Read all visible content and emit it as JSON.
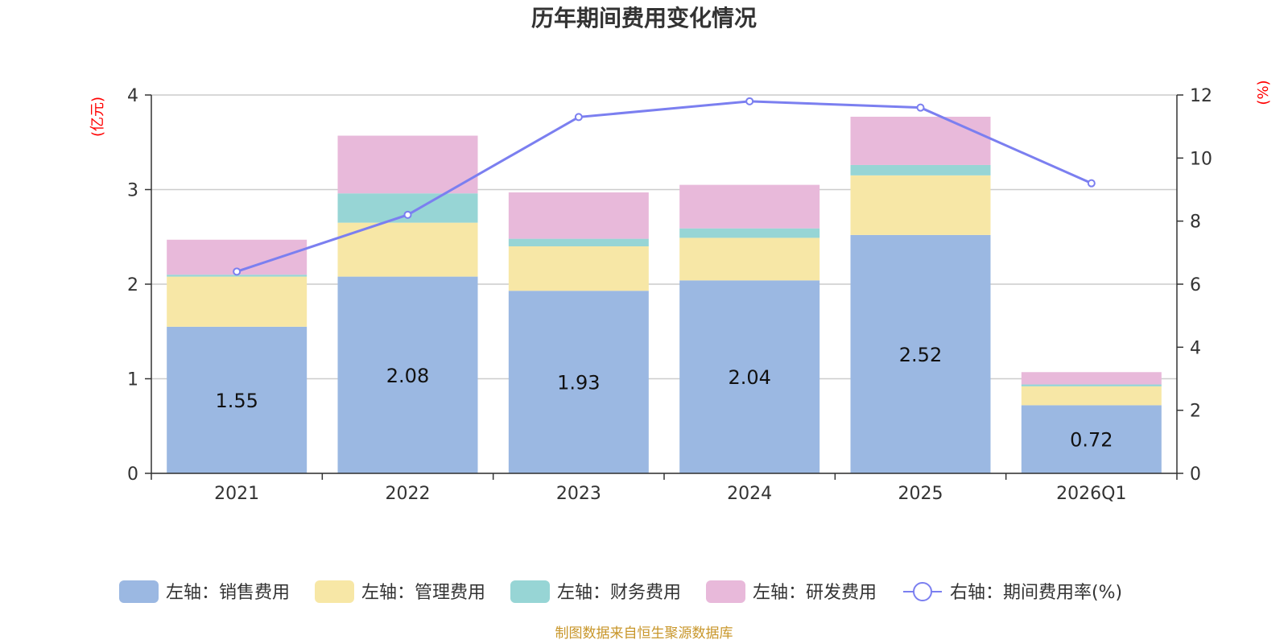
{
  "chart_data": {
    "type": "bar",
    "stacked": true,
    "title": "历年期间费用变化情况",
    "categories": [
      "2021",
      "2022",
      "2023",
      "2024",
      "2025",
      "2026Q1"
    ],
    "left_axis": {
      "unit": "(亿元)",
      "ylim": [
        0,
        4
      ],
      "ticks": [
        0,
        1,
        2,
        3,
        4
      ]
    },
    "right_axis": {
      "unit": "(%)",
      "ylim": [
        0,
        12
      ],
      "ticks": [
        0,
        2,
        4,
        6,
        8,
        10,
        12
      ]
    },
    "series": [
      {
        "name": "左轴：销售费用",
        "axis": "left",
        "color": "#9bb8e2",
        "values": [
          1.55,
          2.08,
          1.93,
          2.04,
          2.52,
          0.72
        ],
        "labels": [
          "1.55",
          "2.08",
          "1.93",
          "2.04",
          "2.52",
          "0.72"
        ]
      },
      {
        "name": "左轴：管理费用",
        "axis": "left",
        "color": "#f7e7a6",
        "values": [
          0.53,
          0.57,
          0.47,
          0.45,
          0.63,
          0.2
        ]
      },
      {
        "name": "左轴：财务费用",
        "axis": "left",
        "color": "#97d5d5",
        "values": [
          0.02,
          0.31,
          0.08,
          0.1,
          0.11,
          0.02
        ]
      },
      {
        "name": "左轴：研发费用",
        "axis": "left",
        "color": "#e8b9da",
        "values": [
          0.37,
          0.61,
          0.49,
          0.46,
          0.51,
          0.13
        ]
      },
      {
        "name": "右轴：期间费用率(%)",
        "axis": "right",
        "type": "line",
        "color": "#7b7ff0",
        "values": [
          6.4,
          8.2,
          11.3,
          11.8,
          11.6,
          9.2
        ]
      }
    ]
  },
  "source_note": "制图数据来自恒生聚源数据库"
}
